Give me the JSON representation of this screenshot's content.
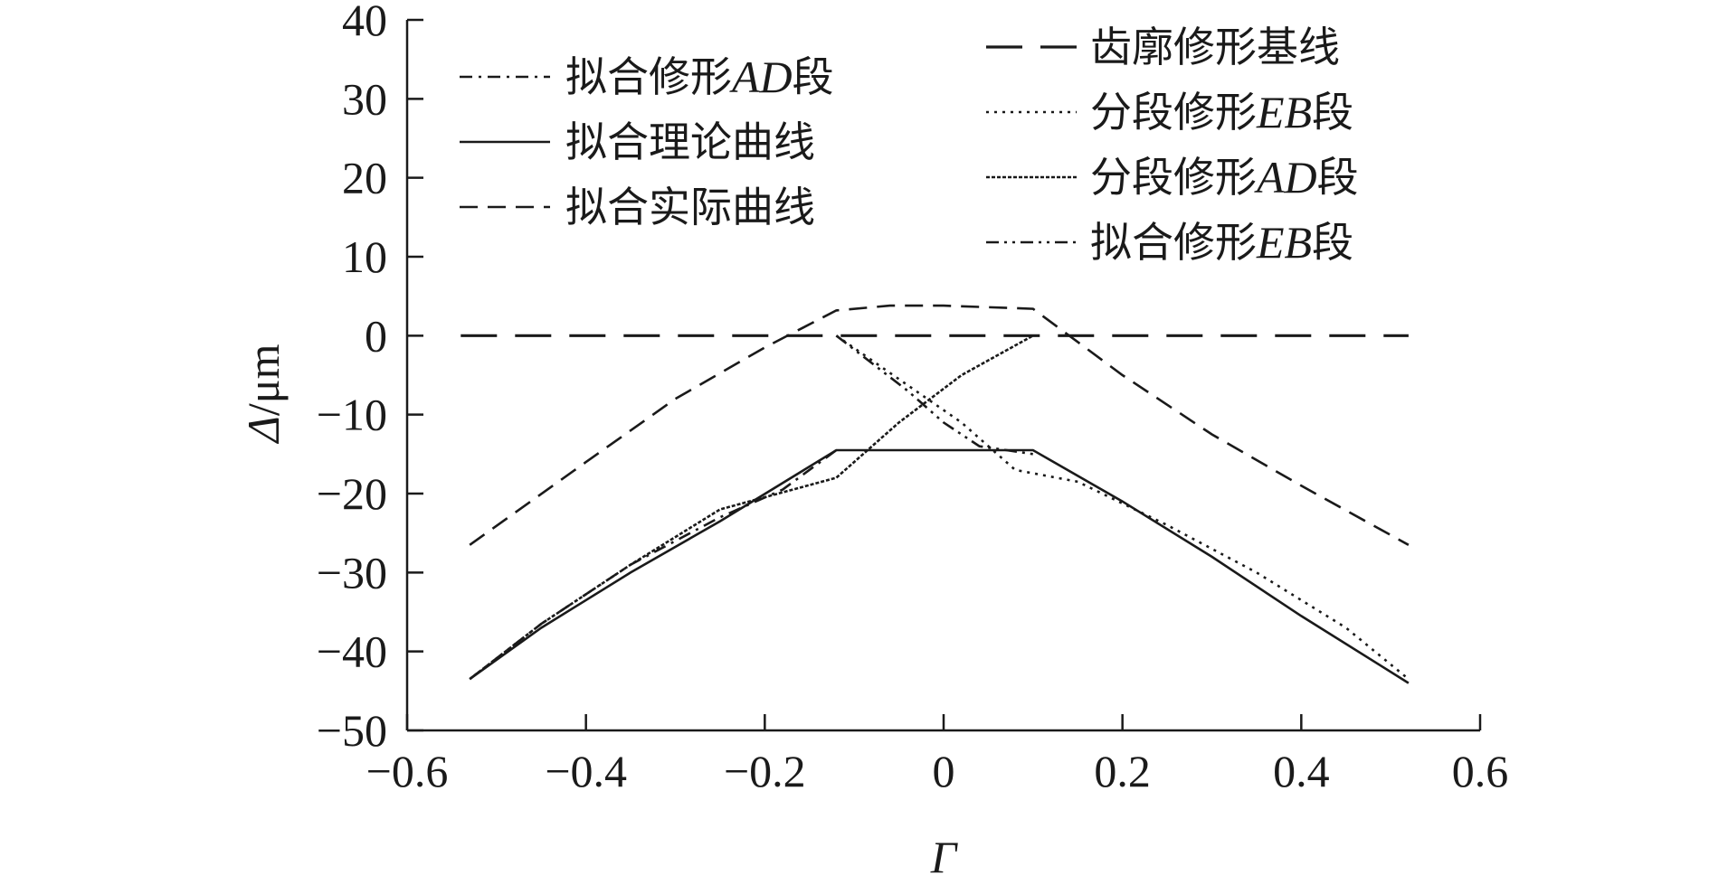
{
  "chart_data": {
    "type": "line",
    "xlabel": "Γ",
    "ylabel": {
      "symbol": "Δ",
      "unit": "/μm"
    },
    "xlim": [
      -0.6,
      0.6
    ],
    "ylim": [
      -50,
      40
    ],
    "x_ticks": [
      {
        "value": -0.6,
        "label": "−0.6"
      },
      {
        "value": -0.4,
        "label": "−0.4"
      },
      {
        "value": -0.2,
        "label": "−0.2"
      },
      {
        "value": 0,
        "label": "0"
      },
      {
        "value": 0.2,
        "label": "0.2"
      },
      {
        "value": 0.4,
        "label": "0.4"
      },
      {
        "value": 0.6,
        "label": "0.6"
      }
    ],
    "y_ticks": [
      {
        "value": 40,
        "label": "40"
      },
      {
        "value": 30,
        "label": "30"
      },
      {
        "value": 20,
        "label": "20"
      },
      {
        "value": 10,
        "label": "10"
      },
      {
        "value": 0,
        "label": "0"
      },
      {
        "value": -10,
        "label": "−10"
      },
      {
        "value": -20,
        "label": "−20"
      },
      {
        "value": -30,
        "label": "−30"
      },
      {
        "value": -40,
        "label": "−40"
      },
      {
        "value": -50,
        "label": "−50"
      }
    ],
    "grid": false,
    "legend_position": "top",
    "series": [
      {
        "name": "拟合修形AD段",
        "name_parts": [
          "拟合修形",
          "AD",
          "段"
        ],
        "style": "dashdot",
        "legend_column": "left",
        "x": [
          -0.53,
          -0.45,
          -0.35,
          -0.25,
          -0.18,
          -0.12
        ],
        "y": [
          -43.5,
          -36.5,
          -29,
          -23,
          -19.5,
          -14.5
        ]
      },
      {
        "name": "拟合理论曲线",
        "name_parts": [
          "拟合理论曲线"
        ],
        "style": "solid",
        "legend_column": "left",
        "x": [
          -0.53,
          -0.45,
          -0.35,
          -0.25,
          -0.12,
          0.1,
          0.2,
          0.3,
          0.4,
          0.52
        ],
        "y": [
          -43.5,
          -37,
          -30,
          -23.5,
          -14.5,
          -14.5,
          -21,
          -28,
          -35.5,
          -44
        ]
      },
      {
        "name": "拟合实际曲线",
        "name_parts": [
          "拟合实际曲线"
        ],
        "style": "dashed",
        "legend_column": "left",
        "x": [
          -0.53,
          -0.4,
          -0.3,
          -0.2,
          -0.12,
          -0.06,
          0,
          0.1,
          0.2,
          0.3,
          0.4,
          0.52
        ],
        "y": [
          -26.5,
          -16,
          -8,
          -1.5,
          3.2,
          3.8,
          3.8,
          3.4,
          -5,
          -12.5,
          -19,
          -26.5
        ]
      },
      {
        "name": "齿廓修形基线",
        "name_parts": [
          "齿廓修形基线"
        ],
        "style": "longdash",
        "legend_column": "right",
        "x": [
          -0.54,
          0.52
        ],
        "y": [
          0,
          0
        ]
      },
      {
        "name": "分段修形EB段",
        "name_parts": [
          "分段修形",
          "EB",
          "段"
        ],
        "style": "dotted",
        "legend_column": "right",
        "x": [
          -0.12,
          -0.05,
          0.02,
          0.08,
          0.15,
          0.25,
          0.35,
          0.45,
          0.52
        ],
        "y": [
          0,
          -5.5,
          -11,
          -17,
          -18.5,
          -24,
          -30,
          -37,
          -43.5
        ]
      },
      {
        "name": "分段修形AD段",
        "name_parts": [
          "分段修形",
          "AD",
          "段"
        ],
        "style": "densedot",
        "legend_column": "right",
        "x": [
          -0.53,
          -0.45,
          -0.35,
          -0.25,
          -0.12,
          -0.05,
          0.02,
          0.1
        ],
        "y": [
          -43.5,
          -36.5,
          -29,
          -22,
          -18,
          -11,
          -5,
          0
        ]
      },
      {
        "name": "拟合修形EB段",
        "name_parts": [
          "拟合修形",
          "EB",
          "段"
        ],
        "style": "dashdotdot",
        "legend_column": "right",
        "x": [
          -0.12,
          -0.08,
          -0.04,
          0,
          0.04,
          0.1
        ],
        "y": [
          0,
          -3.5,
          -7,
          -11,
          -14,
          -15
        ]
      }
    ]
  }
}
